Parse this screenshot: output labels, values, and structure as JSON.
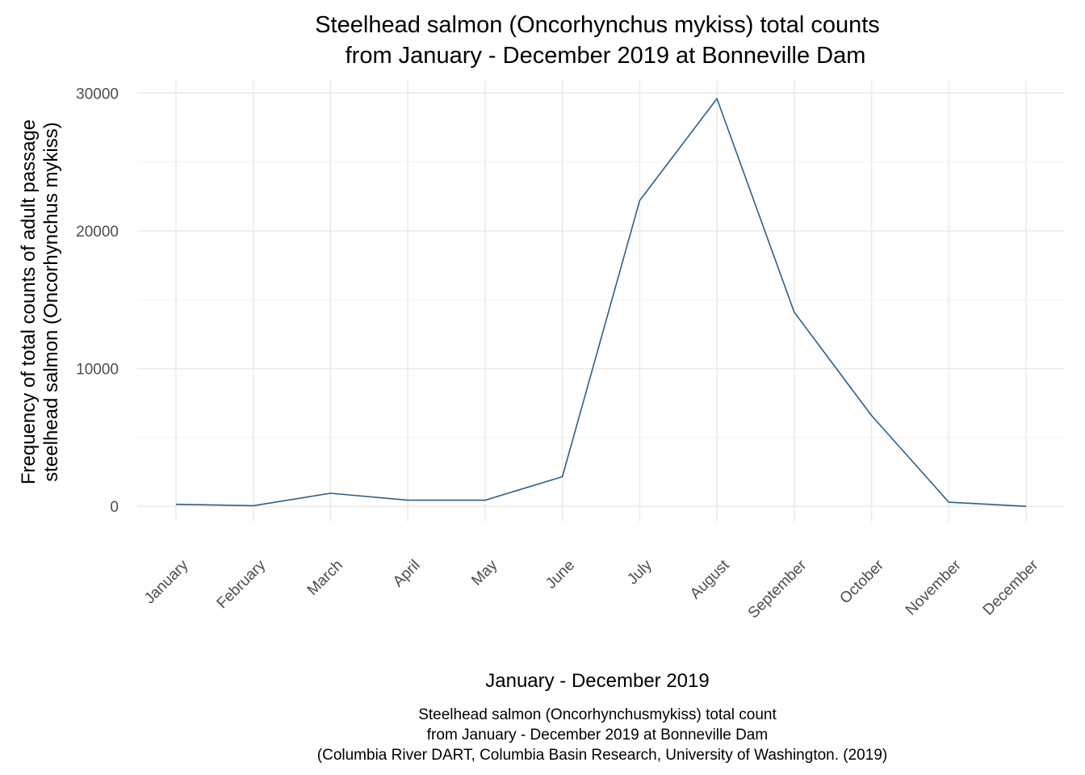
{
  "chart_data": {
    "type": "line",
    "title": [
      "Steelhead salmon (Oncorhynchus mykiss) total counts",
      "from January - December 2019 at Bonneville Dam"
    ],
    "xlabel": "January - December 2019",
    "ylabel": [
      "Frequency of total counts of adult passage",
      "steelhead salmon (Oncorhynchus mykiss)"
    ],
    "caption": [
      "Steelhead salmon (Oncorhynchusmykiss) total count",
      "from January - December 2019 at Bonneville Dam",
      "(Columbia River DART, Columbia Basin Research, University of Washington. (2019)"
    ],
    "categories": [
      "January",
      "February",
      "March",
      "April",
      "May",
      "June",
      "July",
      "August",
      "September",
      "October",
      "November",
      "December"
    ],
    "values": [
      150,
      50,
      950,
      450,
      450,
      2150,
      22200,
      29600,
      14100,
      6600,
      300,
      0
    ],
    "ylim": [
      -1100,
      30900
    ],
    "yticks": [
      0,
      10000,
      20000,
      30000
    ],
    "ytick_labels": [
      "0",
      "10000",
      "20000",
      "30000"
    ],
    "grid": true,
    "legend": "none",
    "line_color": "#2b5f8a"
  }
}
